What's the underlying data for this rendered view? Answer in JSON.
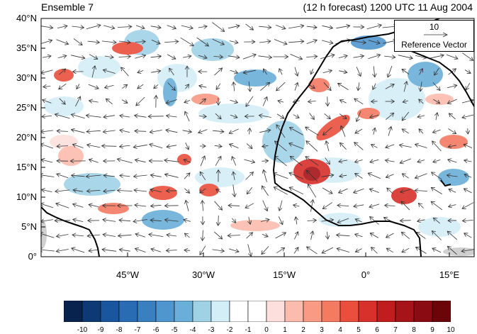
{
  "title_left": "Ensemble 7",
  "title_right": "(12 h forecast) 1200 UTC 11 Aug 2004",
  "lat_labels": [
    "40°N",
    "35°N",
    "30°N",
    "25°N",
    "20°N",
    "15°N",
    "10°N",
    "5°N",
    "0°"
  ],
  "lon_labels": [
    "45°W",
    "30°W",
    "15°W",
    "0°",
    "15°E"
  ],
  "reference_vector": {
    "magnitude": "10",
    "label": "Reference Vector"
  },
  "colorbar": {
    "labels": [
      "-10",
      "-9",
      "-8",
      "-7",
      "-6",
      "-5",
      "-4",
      "-3",
      "-2",
      "-1",
      "0",
      "1",
      "2",
      "3",
      "4",
      "5",
      "6",
      "7",
      "8",
      "9",
      "10"
    ],
    "colors": [
      "#08234e",
      "#0d3a75",
      "#1a56a0",
      "#2a6cb4",
      "#3a80c0",
      "#5096ce",
      "#6aafd9",
      "#a0d2e6",
      "#d4eef8",
      "#ffffff",
      "#ffffff",
      "#fde0dd",
      "#fbbcae",
      "#f89a84",
      "#f47a62",
      "#ea4f3d",
      "#d8302a",
      "#c11c1e",
      "#a61318",
      "#8a0c12",
      "#6b0509"
    ]
  },
  "map": {
    "domain": {
      "lon_min": -57,
      "lon_max": 19,
      "lat_min": 0,
      "lat_max": 40
    },
    "colors": {
      "land_gray": "#cccccc",
      "coast": "#000000"
    }
  }
}
